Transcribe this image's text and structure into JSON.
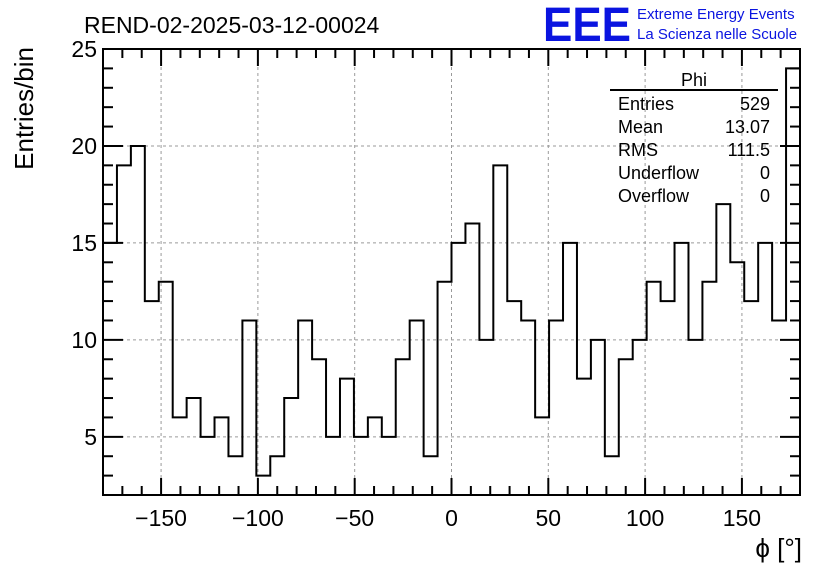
{
  "chart_data": {
    "type": "histogram",
    "title": "REND-02-2025-03-12-00024",
    "xlabel": "ϕ [°]",
    "ylabel": "Entries/bin",
    "xlim": [
      -180,
      180
    ],
    "ylim": [
      2,
      25
    ],
    "bin_width": 7.2,
    "xticks": [
      -150,
      -100,
      -50,
      0,
      50,
      100,
      150
    ],
    "xtick_labels": [
      "−150",
      "−100",
      "−50",
      "0",
      "50",
      "100",
      "150"
    ],
    "yticks": [
      5,
      10,
      15,
      20,
      25
    ],
    "ytick_labels": [
      "5",
      "10",
      "15",
      "20",
      "25"
    ],
    "grid": true,
    "values": [
      15,
      19,
      20,
      12,
      13,
      6,
      7,
      5,
      6,
      4,
      11,
      3,
      4,
      7,
      11,
      9,
      5,
      8,
      5,
      6,
      5,
      9,
      11,
      4,
      13,
      15,
      16,
      10,
      19,
      12,
      11,
      6,
      11,
      15,
      8,
      10,
      4,
      9,
      10,
      13,
      12,
      15,
      10,
      13,
      17,
      14,
      12,
      15,
      11,
      24
    ],
    "stats": {
      "name": "Phi",
      "rows": [
        {
          "label": "Entries",
          "value": "529"
        },
        {
          "label": "Mean",
          "value": "13.07"
        },
        {
          "label": "RMS",
          "value": "111.5"
        },
        {
          "label": "Underflow",
          "value": "0"
        },
        {
          "label": "Overflow",
          "value": "0"
        }
      ]
    }
  },
  "logo": {
    "mark": "EEE",
    "line1": "Extreme Energy Events",
    "line2": "La Scienza nelle Scuole",
    "color": "#0a14e0"
  }
}
